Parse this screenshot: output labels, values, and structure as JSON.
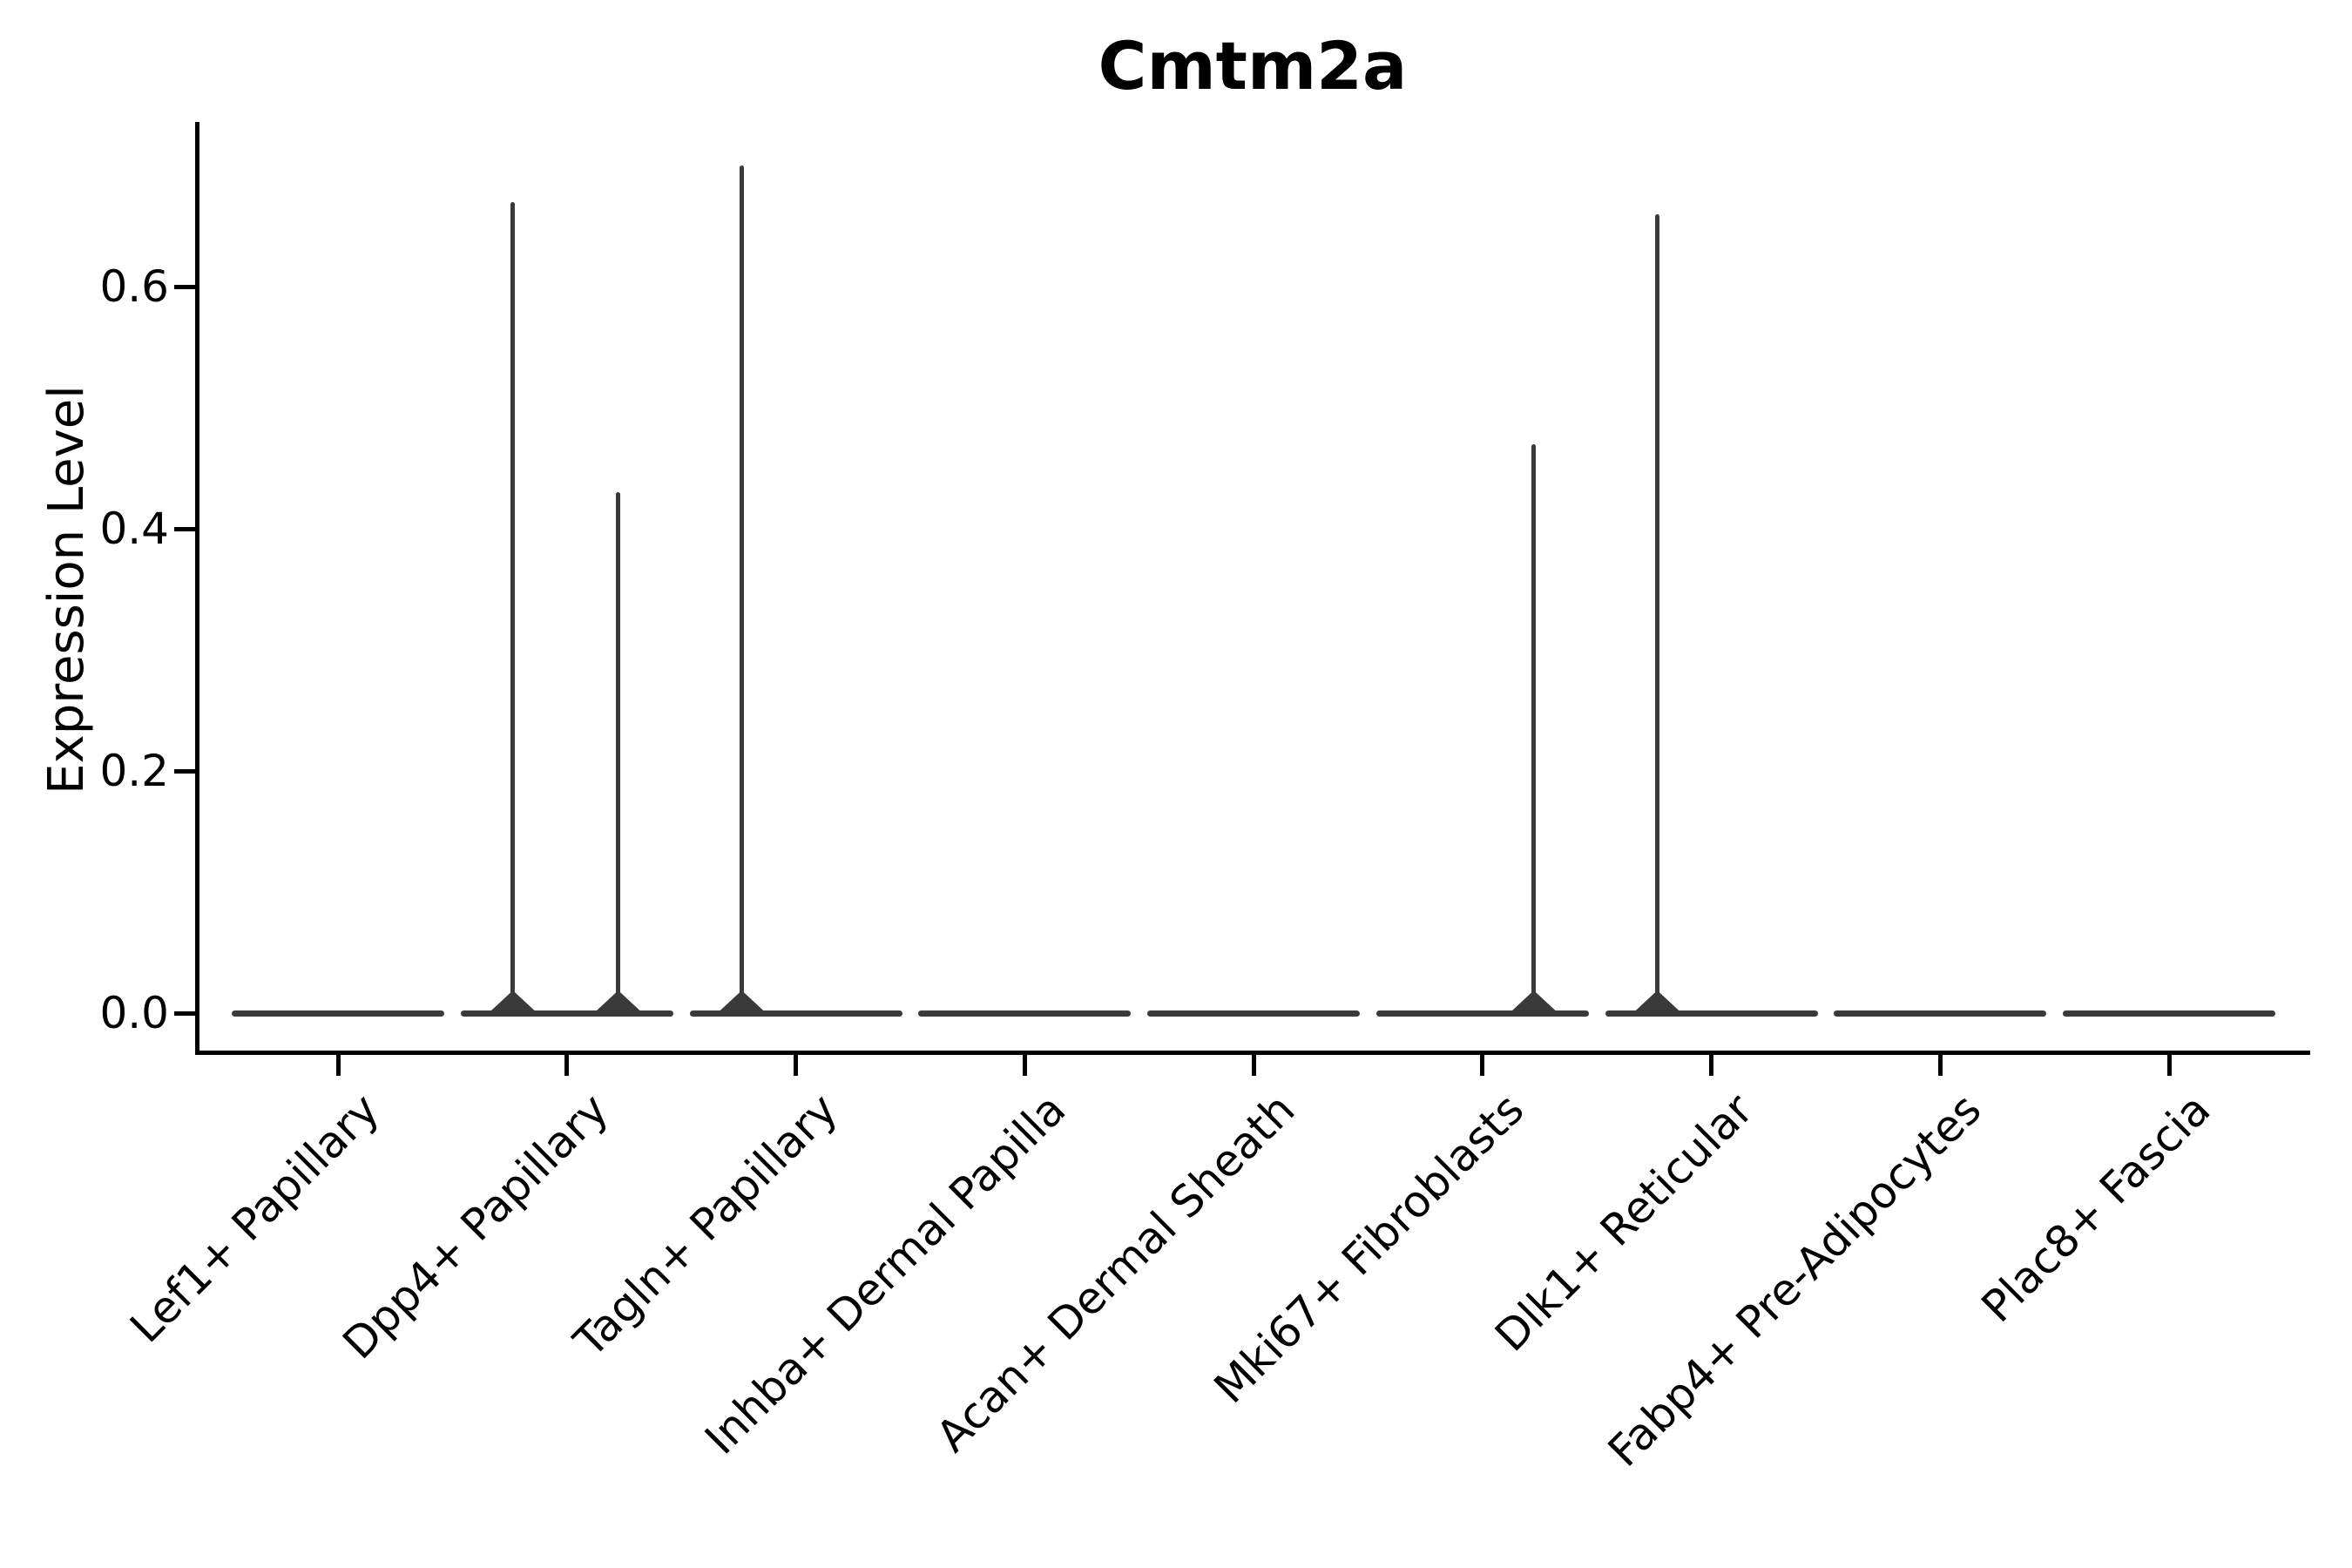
{
  "chart_data": {
    "type": "violin",
    "title": "Cmtm2a",
    "ylabel": "Expression Level",
    "xlabel": "",
    "grid": false,
    "legend_position": "none",
    "ylim": [
      0,
      0.735
    ],
    "yticks": [
      0.0,
      0.2,
      0.4,
      0.6
    ],
    "ytick_labels": [
      "0.0",
      "0.2",
      "0.4",
      "0.6"
    ],
    "categories": [
      "Lef1+ Papillary",
      "Dpp4+ Papillary",
      "Tagln+ Papillary",
      "Inhba+ Dermal Papilla",
      "Acan+ Dermal Sheath",
      "Mki67+ Fibroblasts",
      "Dlk1+ Reticular",
      "Fabp4+ Pre-Adipocytes",
      "Plac8+ Fascia"
    ],
    "violins": [
      {
        "category": "Lef1+ Papillary",
        "baseline_value": 0.0,
        "spikes": []
      },
      {
        "category": "Dpp4+ Papillary",
        "baseline_value": 0.0,
        "spikes": [
          {
            "side": "left",
            "max_value": 0.67
          },
          {
            "side": "right",
            "max_value": 0.43
          }
        ]
      },
      {
        "category": "Tagln+ Papillary",
        "baseline_value": 0.0,
        "spikes": [
          {
            "side": "left",
            "max_value": 0.7
          }
        ]
      },
      {
        "category": "Inhba+ Dermal Papilla",
        "baseline_value": 0.0,
        "spikes": []
      },
      {
        "category": "Acan+ Dermal Sheath",
        "baseline_value": 0.0,
        "spikes": []
      },
      {
        "category": "Mki67+ Fibroblasts",
        "baseline_value": 0.0,
        "spikes": [
          {
            "side": "right",
            "max_value": 0.47
          }
        ]
      },
      {
        "category": "Dlk1+ Reticular",
        "baseline_value": 0.0,
        "spikes": [
          {
            "side": "left",
            "max_value": 0.66
          }
        ]
      },
      {
        "category": "Fabp4+ Pre-Adipocytes",
        "baseline_value": 0.0,
        "spikes": []
      },
      {
        "category": "Plac8+ Fascia",
        "baseline_value": 0.0,
        "spikes": []
      }
    ],
    "colors": {
      "violin": "#3a3a3a",
      "axis": "#000000",
      "text": "#000000",
      "background": "#ffffff"
    }
  }
}
